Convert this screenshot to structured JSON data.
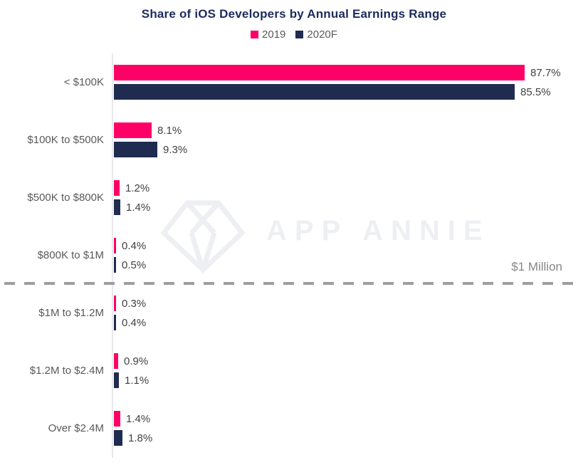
{
  "title": "Share of iOS Developers by Annual Earnings Range",
  "legend": [
    {
      "label": "2019",
      "color": "#ff0066"
    },
    {
      "label": "2020F",
      "color": "#202b50"
    }
  ],
  "watermark": {
    "icon": "diamond-logo",
    "text": "APP ANNIE"
  },
  "divider": {
    "label": "$1 Million"
  },
  "colors": {
    "series_2019": "#ff0066",
    "series_2020f": "#202b50",
    "title_text": "#1b2b5e",
    "category_label": "#58595b",
    "value_label": "#414144",
    "axis_line": "#e9e9eb",
    "divider_line": "#9c9ea1",
    "divider_label": "#85878a",
    "watermark": "#edeff3"
  },
  "chart_data": {
    "type": "bar",
    "orientation": "horizontal",
    "title": "Share of iOS Developers by Annual Earnings Range",
    "categories": [
      "< $100K",
      "$100K to $500K",
      "$500K to $800K",
      "$800K to $1M",
      "$1M to $1.2M",
      "$1.2M to $2.4M",
      "Over $2.4M"
    ],
    "series": [
      {
        "name": "2019",
        "color": "#ff0066",
        "values": [
          87.7,
          8.1,
          1.2,
          0.4,
          0.3,
          0.9,
          1.4
        ]
      },
      {
        "name": "2020F",
        "color": "#202b50",
        "values": [
          85.5,
          9.3,
          1.4,
          0.5,
          0.4,
          1.1,
          1.8
        ]
      }
    ],
    "value_suffix": "%",
    "xlim": [
      0,
      90
    ],
    "grid": false,
    "legend_position": "top",
    "annotations": [
      {
        "type": "dashed-divider",
        "text": "$1 Million",
        "after_category_index": 3
      }
    ]
  }
}
